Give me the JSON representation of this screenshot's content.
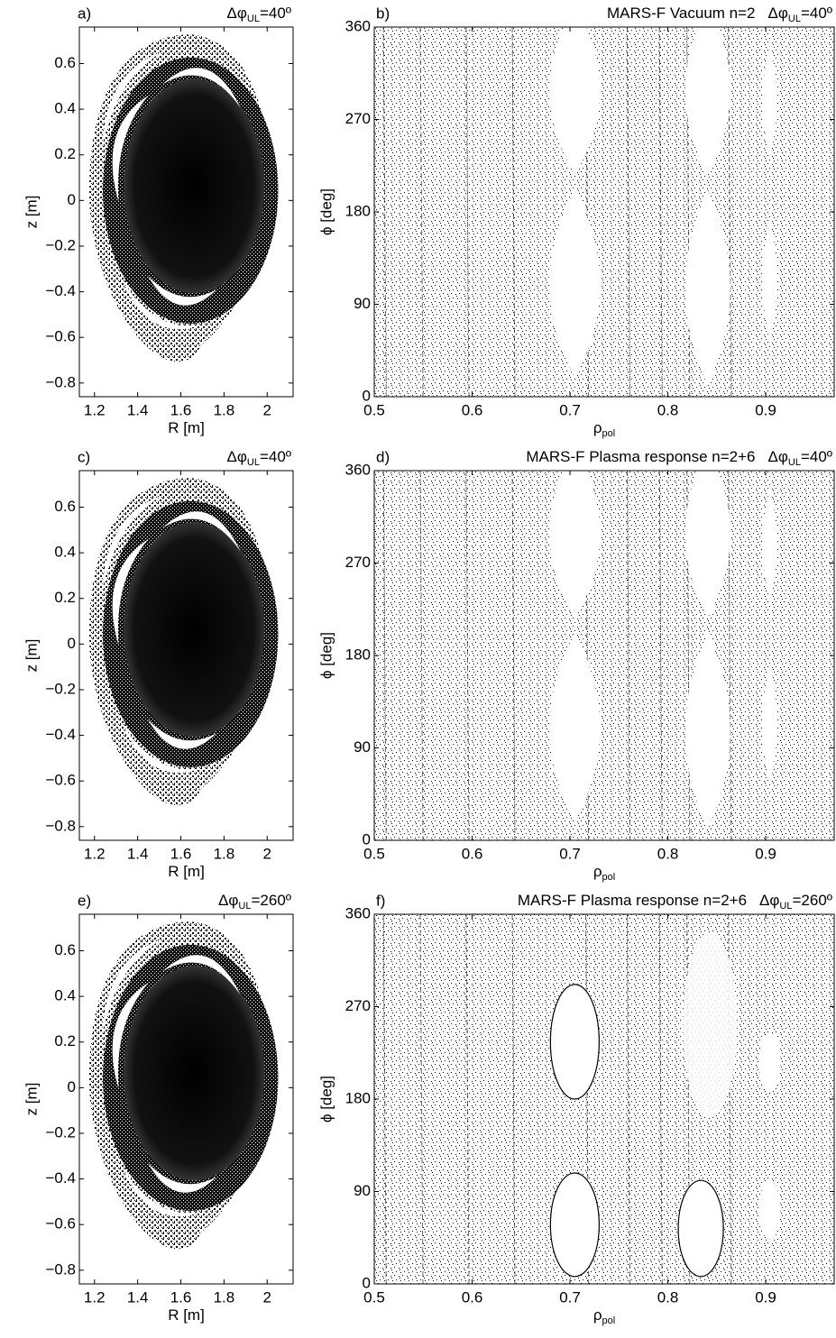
{
  "chart_data": [
    {
      "type": "poincare",
      "panel_label": "a)",
      "title": "",
      "delta": "Δφ",
      "delta_sub": "UL",
      "delta_value": "=40º",
      "xlabel": "R [m]",
      "ylabel": "z [m]",
      "xlim": [
        1.13,
        2.12
      ],
      "ylim": [
        -0.86,
        0.76
      ],
      "xticks": [
        1.2,
        1.4,
        1.6,
        1.8,
        2
      ],
      "yticks": [
        {
          "value": -0.8,
          "label": "−0.8"
        },
        {
          "value": -0.6,
          "label": "−0.6"
        },
        {
          "value": -0.4,
          "label": "−0.4"
        },
        {
          "value": -0.2,
          "label": "−0.2"
        },
        0,
        0.2,
        0.4,
        0.6
      ]
    },
    {
      "type": "poincare",
      "panel_label": "b)",
      "title": "MARS-F Vacuum n=2",
      "delta": "Δφ",
      "delta_sub": "UL",
      "delta_value": "=40º",
      "xlabel": "ρ",
      "xlabel_sub": "pol",
      "ylabel": "ϕ [deg]",
      "xlim": [
        0.5,
        0.97
      ],
      "ylim": [
        0,
        360
      ],
      "xticks": [
        0.5,
        0.6,
        0.7,
        0.8,
        0.9
      ],
      "yticks": [
        0,
        90,
        180,
        270,
        360
      ]
    },
    {
      "type": "poincare",
      "panel_label": "c)",
      "title": "",
      "delta": "Δφ",
      "delta_sub": "UL",
      "delta_value": "=40º",
      "xlabel": "R [m]",
      "ylabel": "z [m]",
      "xlim": [
        1.13,
        2.12
      ],
      "ylim": [
        -0.86,
        0.76
      ],
      "xticks": [
        1.2,
        1.4,
        1.6,
        1.8,
        2
      ],
      "yticks": [
        {
          "value": -0.8,
          "label": "−0.8"
        },
        {
          "value": -0.6,
          "label": "−0.6"
        },
        {
          "value": -0.4,
          "label": "−0.4"
        },
        {
          "value": -0.2,
          "label": "−0.2"
        },
        0,
        0.2,
        0.4,
        0.6
      ]
    },
    {
      "type": "poincare",
      "panel_label": "d)",
      "title": "MARS-F Plasma response n=2+6",
      "delta": "Δφ",
      "delta_sub": "UL",
      "delta_value": "=40º",
      "xlabel": "ρ",
      "xlabel_sub": "pol",
      "ylabel": "ϕ [deg]",
      "xlim": [
        0.5,
        0.97
      ],
      "ylim": [
        0,
        360
      ],
      "xticks": [
        0.5,
        0.6,
        0.7,
        0.8,
        0.9
      ],
      "yticks": [
        0,
        90,
        180,
        270,
        360
      ]
    },
    {
      "type": "poincare",
      "panel_label": "e)",
      "title": "",
      "delta": "Δφ",
      "delta_sub": "UL",
      "delta_value": "=260º",
      "xlabel": "R [m]",
      "ylabel": "z [m]",
      "xlim": [
        1.13,
        2.12
      ],
      "ylim": [
        -0.86,
        0.76
      ],
      "xticks": [
        1.2,
        1.4,
        1.6,
        1.8,
        2
      ],
      "yticks": [
        {
          "value": -0.8,
          "label": "−0.8"
        },
        {
          "value": -0.6,
          "label": "−0.6"
        },
        {
          "value": -0.4,
          "label": "−0.4"
        },
        {
          "value": -0.2,
          "label": "−0.2"
        },
        0,
        0.2,
        0.4,
        0.6
      ]
    },
    {
      "type": "poincare",
      "panel_label": "f)",
      "title": "MARS-F Plasma response n=2+6",
      "delta": "Δφ",
      "delta_sub": "UL",
      "delta_value": "=260º",
      "xlabel": "ρ",
      "xlabel_sub": "pol",
      "ylabel": "ϕ [deg]",
      "xlim": [
        0.5,
        0.97
      ],
      "ylim": [
        0,
        360
      ],
      "xticks": [
        0.5,
        0.6,
        0.7,
        0.8,
        0.9
      ],
      "yticks": [
        0,
        90,
        180,
        270,
        360
      ]
    }
  ]
}
